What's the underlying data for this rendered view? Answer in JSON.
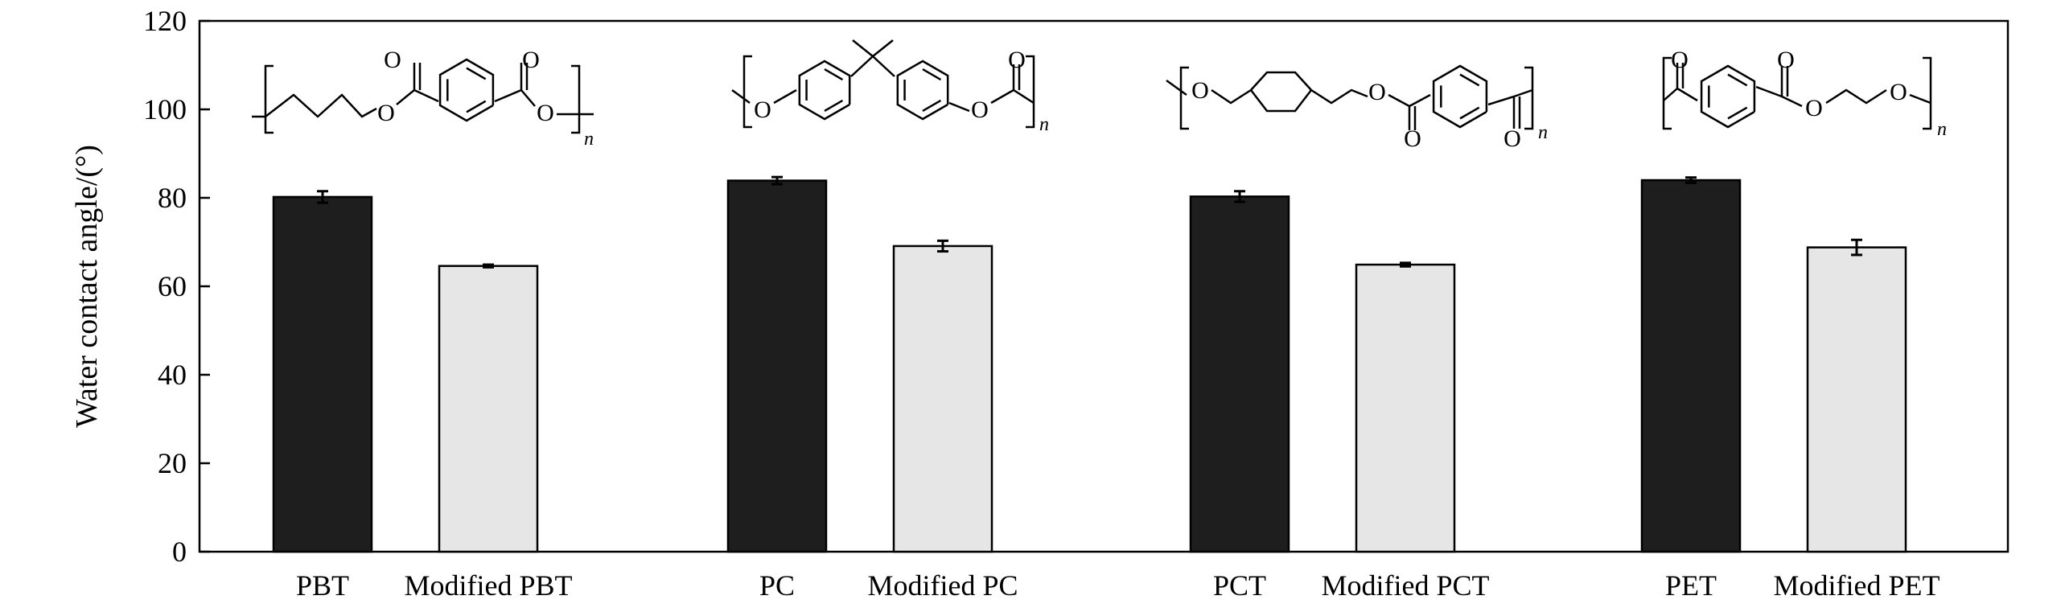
{
  "chart_data": {
    "type": "bar",
    "ylabel": "Water contact angle/(°)",
    "ylim": [
      0,
      120
    ],
    "yticks": [
      0,
      20,
      40,
      60,
      80,
      100,
      120
    ],
    "grid": false,
    "categories": [
      "PBT",
      "Modified PBT",
      "PC",
      "Modified PC",
      "PCT",
      "Modified PCT",
      "PET",
      "Modified PET"
    ],
    "values": [
      80.2,
      64.6,
      83.9,
      69.1,
      80.3,
      64.9,
      84.0,
      68.8
    ],
    "errors": [
      1.3,
      0.3,
      0.8,
      1.2,
      1.2,
      0.4,
      0.6,
      1.7
    ],
    "groups": [
      {
        "name": "PBT",
        "bars": [
          0,
          1
        ],
        "structure_repeat_label": "n"
      },
      {
        "name": "PC",
        "bars": [
          2,
          3
        ],
        "structure_repeat_label": "n"
      },
      {
        "name": "PCT",
        "bars": [
          4,
          5
        ],
        "structure_repeat_label": "n"
      },
      {
        "name": "PET",
        "bars": [
          6,
          7
        ],
        "structure_repeat_label": "n"
      }
    ],
    "colors": {
      "unmodified": "#1e1e1e",
      "modified": "#e6e6e6",
      "edge": "#000000"
    },
    "structure_atom_label": "O"
  }
}
